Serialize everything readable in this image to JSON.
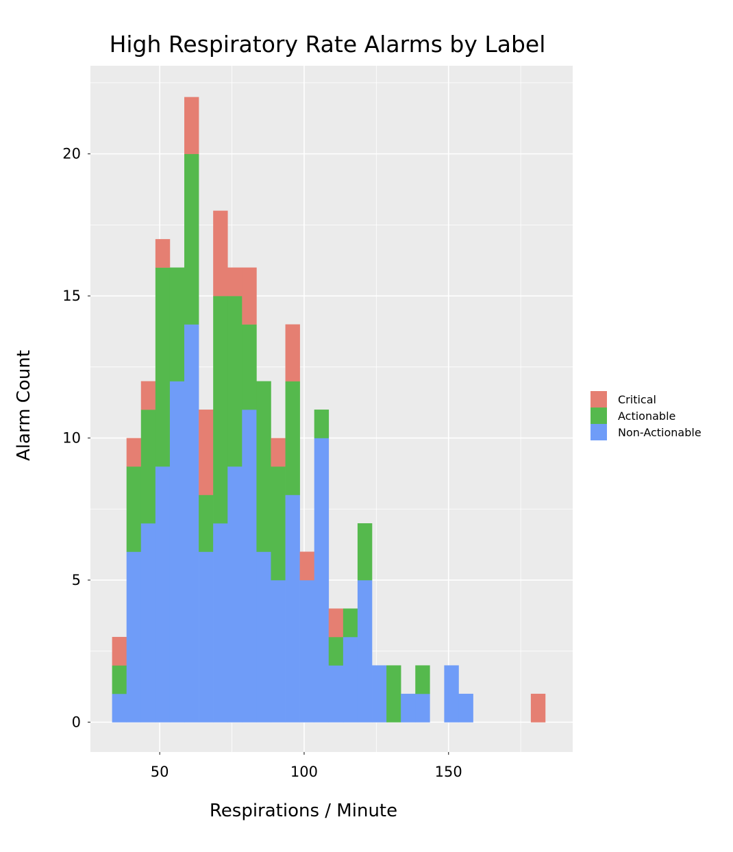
{
  "chart_data": {
    "type": "bar",
    "stacked": true,
    "title": "High Respiratory Rate Alarms by Label",
    "xlabel": "Respirations / Minute",
    "ylabel": "Alarm Count",
    "xlim": [
      26,
      193
    ],
    "ylim": [
      -1.05,
      23.1
    ],
    "xticks": [
      50,
      100,
      150
    ],
    "yticks": [
      0,
      5,
      10,
      15,
      20
    ],
    "bin_width": 5,
    "grid": true,
    "legend_position": "right",
    "bin_centers": [
      36,
      41,
      46,
      51,
      56,
      61,
      66,
      71,
      76,
      81,
      86,
      91,
      96,
      101,
      106,
      111,
      116,
      121,
      126,
      131,
      136,
      141,
      146,
      151,
      156,
      161,
      166,
      171,
      176,
      181
    ],
    "series": [
      {
        "name": "Non-Actionable",
        "color": "#6F9CF8",
        "values": [
          1,
          6,
          7,
          9,
          12,
          14,
          6,
          7,
          9,
          11,
          6,
          5,
          8,
          5,
          10,
          2,
          3,
          5,
          2,
          0,
          1,
          1,
          0,
          2,
          1,
          0,
          0,
          0,
          0,
          0
        ]
      },
      {
        "name": "Actionable",
        "color": "#55B94D",
        "values": [
          1,
          3,
          4,
          7,
          4,
          6,
          2,
          8,
          6,
          3,
          6,
          4,
          4,
          0,
          1,
          1,
          1,
          2,
          0,
          2,
          0,
          1,
          0,
          0,
          0,
          0,
          0,
          0,
          0,
          0
        ]
      },
      {
        "name": "Critical",
        "color": "#E57F72",
        "values": [
          1,
          1,
          1,
          1,
          0,
          2,
          3,
          3,
          1,
          2,
          0,
          1,
          2,
          1,
          0,
          1,
          0,
          0,
          0,
          0,
          0,
          0,
          0,
          0,
          0,
          0,
          0,
          0,
          0,
          1
        ]
      }
    ],
    "legend_order": [
      "Critical",
      "Actionable",
      "Non-Actionable"
    ]
  }
}
